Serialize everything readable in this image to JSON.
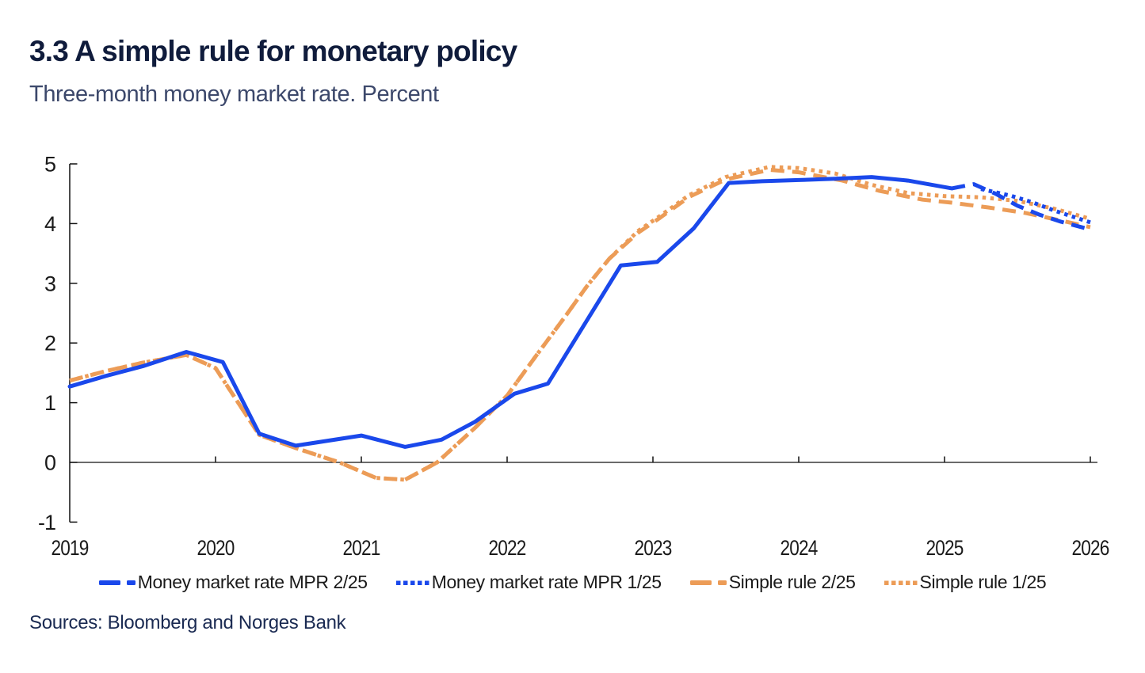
{
  "chart_data": {
    "type": "line",
    "title": "3.3 A simple rule for monetary policy",
    "subtitle": "Three-month money market rate. Percent",
    "sources": "Sources: Bloomberg and Norges Bank",
    "xlabel": "",
    "ylabel": "Percent",
    "xlim": [
      2019,
      2026
    ],
    "ylim": [
      -1,
      5
    ],
    "x_ticks": [
      2019,
      2020,
      2021,
      2022,
      2023,
      2024,
      2025,
      2026
    ],
    "y_ticks": [
      -1,
      0,
      1,
      2,
      3,
      4,
      5
    ],
    "grid": false,
    "legend_position": "bottom",
    "colors": {
      "blue": "#1a48eb",
      "orange": "#ec9c57",
      "axis": "#1a1a1a"
    },
    "series": [
      {
        "name": "Money market rate MPR 2/25",
        "color": "#1a48eb",
        "legend_style": "dashed",
        "segments": [
          {
            "style": "solid",
            "points": [
              [
                2019.0,
                1.27
              ],
              [
                2019.25,
                1.45
              ],
              [
                2019.5,
                1.61
              ],
              [
                2019.8,
                1.85
              ],
              [
                2020.05,
                1.68
              ],
              [
                2020.3,
                0.48
              ],
              [
                2020.55,
                0.28
              ],
              [
                2021.0,
                0.45
              ],
              [
                2021.3,
                0.26
              ],
              [
                2021.55,
                0.38
              ],
              [
                2021.78,
                0.68
              ],
              [
                2022.05,
                1.15
              ],
              [
                2022.28,
                1.32
              ],
              [
                2022.78,
                3.3
              ],
              [
                2023.03,
                3.36
              ],
              [
                2023.28,
                3.92
              ],
              [
                2023.52,
                4.68
              ],
              [
                2023.75,
                4.71
              ],
              [
                2024.0,
                4.73
              ],
              [
                2024.25,
                4.75
              ],
              [
                2024.5,
                4.78
              ],
              [
                2024.75,
                4.72
              ],
              [
                2025.05,
                4.59
              ]
            ]
          },
          {
            "style": "dashed",
            "points": [
              [
                2025.05,
                4.59
              ],
              [
                2025.2,
                4.66
              ],
              [
                2025.35,
                4.5
              ],
              [
                2025.5,
                4.3
              ],
              [
                2025.65,
                4.15
              ],
              [
                2025.8,
                4.03
              ],
              [
                2026.0,
                3.9
              ]
            ]
          }
        ]
      },
      {
        "name": "Money market rate MPR 1/25",
        "color": "#1a48eb",
        "legend_style": "dotted",
        "segments": [
          {
            "style": "dotted",
            "points": [
              [
                2025.25,
                4.58
              ],
              [
                2025.45,
                4.47
              ],
              [
                2025.6,
                4.36
              ],
              [
                2025.75,
                4.22
              ],
              [
                2025.9,
                4.1
              ],
              [
                2026.0,
                4.02
              ]
            ]
          }
        ]
      },
      {
        "name": "Simple rule 2/25",
        "color": "#ec9c57",
        "legend_style": "dashed",
        "segments": [
          {
            "style": "dashed",
            "points": [
              [
                2019.0,
                1.37
              ],
              [
                2019.25,
                1.53
              ],
              [
                2019.5,
                1.67
              ],
              [
                2019.8,
                1.8
              ],
              [
                2020.0,
                1.58
              ],
              [
                2020.3,
                0.46
              ],
              [
                2020.55,
                0.24
              ],
              [
                2020.85,
                0.0
              ],
              [
                2021.1,
                -0.26
              ],
              [
                2021.3,
                -0.29
              ],
              [
                2021.52,
                0.0
              ],
              [
                2021.78,
                0.58
              ],
              [
                2022.0,
                1.12
              ],
              [
                2022.2,
                1.79
              ],
              [
                2022.4,
                2.45
              ],
              [
                2022.55,
                2.96
              ],
              [
                2022.7,
                3.41
              ],
              [
                2022.9,
                3.85
              ],
              [
                2023.05,
                4.1
              ],
              [
                2023.25,
                4.45
              ],
              [
                2023.5,
                4.74
              ],
              [
                2023.8,
                4.9
              ],
              [
                2024.0,
                4.86
              ],
              [
                2024.3,
                4.72
              ],
              [
                2024.55,
                4.55
              ],
              [
                2024.85,
                4.4
              ],
              [
                2025.05,
                4.35
              ],
              [
                2025.3,
                4.27
              ],
              [
                2025.55,
                4.18
              ],
              [
                2025.8,
                4.05
              ],
              [
                2026.0,
                3.94
              ]
            ]
          }
        ]
      },
      {
        "name": "Simple rule 1/25",
        "color": "#ec9c57",
        "legend_style": "dotted",
        "segments": [
          {
            "style": "dotted",
            "points": [
              [
                2019.0,
                1.37
              ],
              [
                2019.25,
                1.53
              ],
              [
                2019.5,
                1.67
              ],
              [
                2019.8,
                1.8
              ],
              [
                2020.0,
                1.58
              ],
              [
                2020.3,
                0.46
              ],
              [
                2020.55,
                0.24
              ],
              [
                2020.85,
                0.0
              ],
              [
                2021.1,
                -0.26
              ],
              [
                2021.3,
                -0.29
              ],
              [
                2021.52,
                0.0
              ],
              [
                2021.78,
                0.58
              ],
              [
                2022.0,
                1.12
              ],
              [
                2022.2,
                1.79
              ],
              [
                2022.4,
                2.45
              ],
              [
                2022.55,
                2.96
              ],
              [
                2022.7,
                3.41
              ],
              [
                2022.9,
                3.88
              ],
              [
                2023.05,
                4.13
              ],
              [
                2023.25,
                4.48
              ],
              [
                2023.5,
                4.78
              ],
              [
                2023.8,
                4.95
              ],
              [
                2024.0,
                4.93
              ],
              [
                2024.25,
                4.84
              ],
              [
                2024.5,
                4.65
              ],
              [
                2024.75,
                4.51
              ],
              [
                2025.0,
                4.46
              ],
              [
                2025.25,
                4.44
              ],
              [
                2025.5,
                4.38
              ],
              [
                2025.75,
                4.25
              ],
              [
                2026.0,
                4.08
              ]
            ]
          }
        ]
      }
    ]
  }
}
